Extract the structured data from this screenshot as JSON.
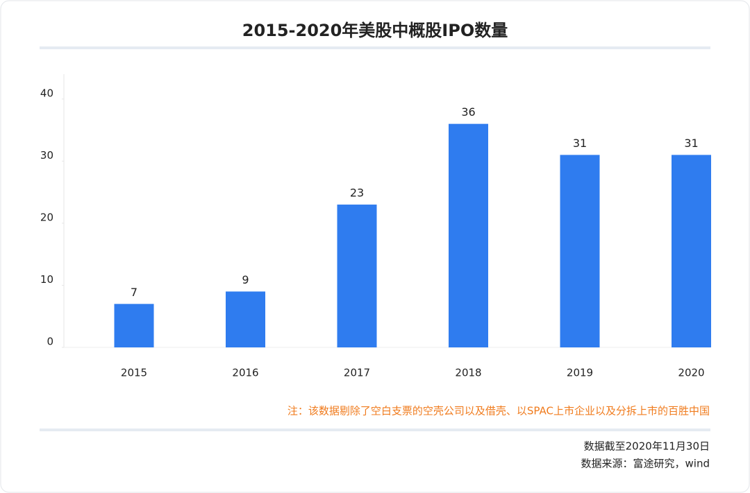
{
  "chart_data": {
    "type": "bar",
    "title": "2015-2020年美股中概股IPO数量",
    "categories": [
      "2015",
      "2016",
      "2017",
      "2018",
      "2019",
      "2020"
    ],
    "values": [
      7,
      9,
      23,
      36,
      31,
      31
    ],
    "color": "#2f7cef",
    "ylim": [
      0,
      44
    ],
    "yticks": [
      0,
      10,
      20,
      30,
      40
    ],
    "note": "注：该数据剔除了空白支票的空壳公司以及借壳、以SPAC上市企业以及分拆上市的百胜中国",
    "footnotes": [
      "数据截至2020年11月30日",
      "数据来源：富途研究，wind"
    ]
  }
}
